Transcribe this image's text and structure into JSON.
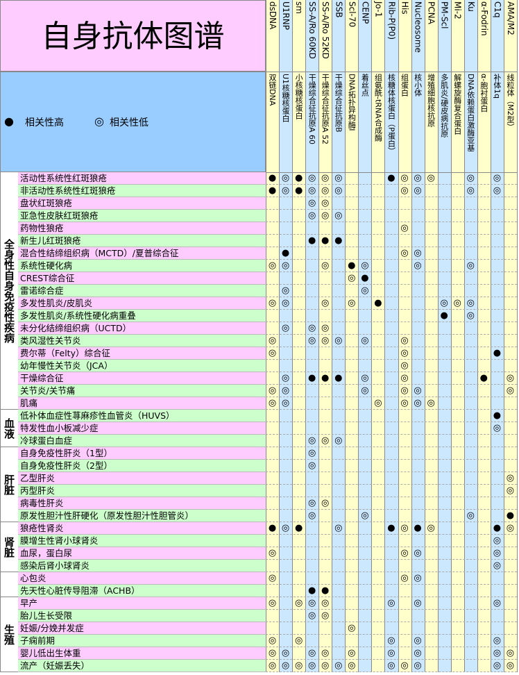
{
  "title": "自身抗体图谱",
  "legend": [
    {
      "symbol": "●",
      "label": "相关性高"
    },
    {
      "symbol": "◎",
      "label": "相关性低"
    }
  ],
  "antibodies": [
    {
      "name": "dsDNA",
      "description": "双链DNA"
    },
    {
      "name": "U1RNP",
      "description": "U1核糖核蛋白"
    },
    {
      "name": "sm",
      "description": "小核糖核蛋白"
    },
    {
      "name": "SS-A/Ro 60KD",
      "description": "干燥综合征抗原A 60"
    },
    {
      "name": "SS-A/Ro 52KD",
      "description": "干燥综合征抗原A 52"
    },
    {
      "name": "SSB",
      "description": "干燥综合征抗原B"
    },
    {
      "name": "Scl-70",
      "description": "DNA拓扑异构酶I"
    },
    {
      "name": "CENP",
      "description": "着丝点"
    },
    {
      "name": "Jo-1",
      "description": "组氨酰-tRNA合成酶"
    },
    {
      "name": "Rib-P(P0)",
      "description": "核糖体核蛋白（P蛋白）"
    },
    {
      "name": "His",
      "description": "组蛋白"
    },
    {
      "name": "Nucleosome",
      "description": "核小体"
    },
    {
      "name": "PCNA",
      "description": "增殖细胞核抗原"
    },
    {
      "name": "PM-Scl",
      "description": "多肌炎/硬皮病抗原"
    },
    {
      "name": "Mi-2",
      "description": "解螺旋酶复合蛋白"
    },
    {
      "name": "Ku",
      "description": "DNA依赖蛋白激酶亚基"
    },
    {
      "name": "α-Fodrin",
      "description": "α-胞衬蛋白"
    },
    {
      "name": "C1q",
      "description": "补体1q"
    },
    {
      "name": "AMA/M2",
      "description": "线粒体（M2型）"
    }
  ],
  "groups": [
    {
      "label": "全身性自身免疫性疾病",
      "diseases": [
        {
          "name": "活动性系统性红斑狼疮",
          "marks": [
            "●",
            "◎",
            "●",
            "◎",
            "◎",
            "◎",
            null,
            null,
            null,
            "●",
            "◎",
            "◎",
            "◎",
            null,
            null,
            "◎",
            null,
            "◎",
            null
          ]
        },
        {
          "name": "非活动性系统性红斑狼疮",
          "marks": [
            "●",
            "◎",
            "●",
            "◎",
            "◎",
            "◎",
            null,
            null,
            null,
            null,
            "◎",
            "◎",
            null,
            null,
            null,
            "◎",
            null,
            "◎",
            null
          ]
        },
        {
          "name": "盘状红斑狼疮",
          "marks": [
            null,
            null,
            null,
            "◎",
            "◎",
            null,
            null,
            null,
            null,
            null,
            null,
            null,
            null,
            null,
            null,
            null,
            null,
            null,
            null
          ]
        },
        {
          "name": "亚急性皮肤红斑狼疮",
          "marks": [
            null,
            null,
            null,
            "◎",
            "◎",
            "◎",
            null,
            null,
            null,
            null,
            null,
            null,
            null,
            null,
            null,
            null,
            null,
            null,
            null
          ]
        },
        {
          "name": "药物性狼疮",
          "marks": [
            null,
            null,
            null,
            null,
            null,
            null,
            null,
            null,
            null,
            null,
            "◎",
            null,
            null,
            null,
            null,
            null,
            null,
            null,
            null
          ]
        },
        {
          "name": "新生儿红斑狼疮",
          "marks": [
            null,
            null,
            null,
            "●",
            "●",
            "●",
            null,
            null,
            null,
            null,
            null,
            null,
            null,
            null,
            null,
            null,
            null,
            null,
            null
          ]
        },
        {
          "name": "混合性结缔组织病（MCTD）/夏普综合征",
          "marks": [
            null,
            "●",
            null,
            null,
            null,
            null,
            null,
            null,
            null,
            null,
            "◎",
            "◎",
            null,
            null,
            null,
            null,
            null,
            null,
            null
          ]
        },
        {
          "name": "系统性硬化病",
          "marks": [
            "◎",
            "◎",
            null,
            null,
            "◎",
            null,
            "●",
            "◎",
            null,
            null,
            null,
            "◎",
            null,
            null,
            null,
            "◎",
            null,
            null,
            null
          ]
        },
        {
          "name": "CREST综合征",
          "marks": [
            null,
            null,
            null,
            null,
            null,
            null,
            "◎",
            "●",
            null,
            null,
            null,
            null,
            null,
            null,
            null,
            null,
            null,
            null,
            null
          ]
        },
        {
          "name": "雷诺综合症",
          "marks": [
            null,
            "◎",
            null,
            null,
            null,
            null,
            null,
            "◎",
            null,
            null,
            null,
            null,
            null,
            null,
            null,
            null,
            null,
            null,
            null
          ]
        },
        {
          "name": "多发性肌炎/皮肌炎",
          "marks": [
            "◎",
            "◎",
            null,
            null,
            "◎",
            null,
            "◎",
            null,
            "●",
            null,
            null,
            null,
            null,
            "◎",
            "◎",
            "◎",
            null,
            null,
            null
          ]
        },
        {
          "name": "多发性肌炎/系统性硬化病重叠",
          "marks": [
            null,
            null,
            null,
            null,
            null,
            null,
            null,
            null,
            null,
            null,
            null,
            null,
            null,
            "●",
            null,
            "◎",
            null,
            null,
            null
          ]
        },
        {
          "name": "未分化结缔组织病（UCTD）",
          "marks": [
            null,
            "◎",
            null,
            "◎",
            "◎",
            null,
            null,
            null,
            null,
            null,
            null,
            null,
            null,
            null,
            null,
            null,
            null,
            null,
            null
          ]
        },
        {
          "name": "类风湿性关节炎",
          "marks": [
            "◎",
            null,
            null,
            "◎",
            "◎",
            "◎",
            null,
            "◎",
            null,
            null,
            "◎",
            null,
            null,
            null,
            null,
            null,
            null,
            null,
            null
          ]
        },
        {
          "name": "费尔蒂（Felty）综合征",
          "marks": [
            "◎",
            null,
            null,
            null,
            null,
            null,
            null,
            null,
            null,
            null,
            "◎",
            null,
            null,
            null,
            null,
            null,
            null,
            "●",
            null
          ]
        },
        {
          "name": "幼年慢性关节炎（JCA）",
          "marks": [
            null,
            null,
            null,
            null,
            null,
            null,
            null,
            null,
            null,
            null,
            "◎",
            null,
            null,
            null,
            null,
            null,
            null,
            null,
            null
          ]
        },
        {
          "name": "干燥综合征",
          "marks": [
            null,
            "◎",
            null,
            "●",
            "●",
            "●",
            null,
            "◎",
            null,
            null,
            "◎",
            null,
            null,
            null,
            null,
            null,
            "●",
            null,
            "◎"
          ]
        },
        {
          "name": "关节炎/关节痛",
          "marks": [
            "◎",
            "◎",
            null,
            null,
            null,
            null,
            null,
            "◎",
            null,
            null,
            "◎",
            "◎",
            null,
            null,
            null,
            null,
            null,
            null,
            "◎"
          ]
        },
        {
          "name": "肌痛",
          "marks": [
            "◎",
            "◎",
            null,
            null,
            null,
            null,
            null,
            null,
            "◎",
            null,
            "◎",
            "◎",
            "◎",
            null,
            null,
            null,
            null,
            null,
            null
          ]
        }
      ]
    },
    {
      "label": "血液",
      "diseases": [
        {
          "name": "低补体血症性荨麻疹性血管炎（HUVS）",
          "marks": [
            null,
            null,
            null,
            null,
            null,
            null,
            null,
            null,
            null,
            null,
            null,
            null,
            null,
            null,
            null,
            null,
            null,
            "●",
            null
          ]
        },
        {
          "name": "特发性血小板减少症",
          "marks": [
            null,
            null,
            null,
            null,
            null,
            null,
            null,
            null,
            null,
            null,
            null,
            null,
            null,
            null,
            null,
            null,
            null,
            "◎",
            null
          ]
        },
        {
          "name": "冷球蛋白血症",
          "marks": [
            null,
            null,
            null,
            "◎",
            "◎",
            "◎",
            null,
            null,
            null,
            null,
            null,
            null,
            null,
            null,
            null,
            null,
            null,
            null,
            null
          ]
        }
      ]
    },
    {
      "label": "肝脏",
      "diseases": [
        {
          "name": "自身免疫性肝炎（1型）",
          "marks": [
            null,
            null,
            null,
            "◎",
            null,
            null,
            null,
            null,
            null,
            null,
            null,
            null,
            null,
            null,
            null,
            null,
            null,
            null,
            null
          ]
        },
        {
          "name": "自身免疫性肝炎（2型）",
          "marks": [
            null,
            null,
            null,
            "◎",
            null,
            null,
            null,
            null,
            null,
            null,
            null,
            null,
            null,
            null,
            null,
            null,
            null,
            null,
            null
          ]
        },
        {
          "name": "乙型肝炎",
          "marks": [
            null,
            null,
            null,
            null,
            null,
            null,
            null,
            null,
            null,
            null,
            null,
            null,
            null,
            null,
            null,
            null,
            null,
            null,
            "◎"
          ]
        },
        {
          "name": "丙型肝炎",
          "marks": [
            null,
            null,
            null,
            null,
            null,
            null,
            null,
            null,
            null,
            null,
            null,
            null,
            null,
            null,
            null,
            null,
            null,
            null,
            "◎"
          ]
        },
        {
          "name": "病毒性肝炎",
          "marks": [
            null,
            null,
            null,
            "◎",
            "◎",
            null,
            null,
            null,
            null,
            null,
            null,
            null,
            null,
            null,
            null,
            null,
            null,
            null,
            null
          ]
        },
        {
          "name": "原发性胆汁性肝硬化（原发性胆汁性胆管炎）",
          "marks": [
            null,
            null,
            null,
            "◎",
            null,
            null,
            null,
            "◎",
            null,
            null,
            null,
            null,
            null,
            null,
            null,
            "◎",
            null,
            null,
            "●"
          ]
        }
      ]
    },
    {
      "label": "肾脏",
      "diseases": [
        {
          "name": "狼疮性肾炎",
          "marks": [
            "●",
            "◎",
            "●",
            null,
            null,
            "◎",
            null,
            null,
            null,
            "●",
            "◎",
            "●",
            "◎",
            null,
            null,
            null,
            null,
            "●",
            "◎"
          ]
        },
        {
          "name": "膜增生性肾小球肾炎",
          "marks": [
            null,
            null,
            null,
            null,
            null,
            null,
            null,
            null,
            null,
            null,
            null,
            null,
            null,
            null,
            null,
            null,
            null,
            "◎",
            null
          ]
        },
        {
          "name": "血尿，蛋白尿",
          "marks": [
            "◎",
            null,
            null,
            null,
            null,
            null,
            null,
            null,
            null,
            null,
            "◎",
            "◎",
            null,
            null,
            null,
            null,
            null,
            "◎",
            null
          ]
        },
        {
          "name": "感染后肾小球肾炎",
          "marks": [
            null,
            null,
            null,
            null,
            null,
            null,
            null,
            null,
            null,
            null,
            null,
            null,
            null,
            null,
            null,
            null,
            null,
            "◎",
            null
          ]
        }
      ]
    },
    {
      "diseases": [
        {
          "name": "心包炎",
          "marks": [
            "◎",
            null,
            null,
            null,
            null,
            null,
            null,
            null,
            null,
            null,
            "◎",
            "◎",
            null,
            null,
            null,
            null,
            null,
            null,
            null
          ]
        },
        {
          "name": "先天性心脏传导阻滞（ACHB）",
          "marks": [
            null,
            null,
            null,
            "●",
            "●",
            null,
            null,
            null,
            null,
            null,
            null,
            null,
            null,
            null,
            null,
            null,
            null,
            null,
            null
          ]
        }
      ]
    },
    {
      "label": "生殖",
      "diseases": [
        {
          "name": "早产",
          "marks": [
            "◎",
            null,
            "◎",
            "◎",
            "◎",
            null,
            null,
            null,
            null,
            "◎",
            null,
            "◎",
            null,
            null,
            null,
            null,
            null,
            "◎",
            null
          ]
        },
        {
          "name": "胎儿生长受限",
          "marks": [
            null,
            null,
            null,
            "◎",
            "◎",
            null,
            null,
            null,
            null,
            null,
            null,
            null,
            null,
            null,
            null,
            null,
            null,
            null,
            null
          ]
        },
        {
          "name": "妊娠/分娩并发症",
          "marks": [
            null,
            null,
            null,
            null,
            null,
            null,
            "◎",
            null,
            null,
            null,
            null,
            null,
            null,
            null,
            null,
            null,
            null,
            null,
            null
          ]
        },
        {
          "name": "子痫前期",
          "marks": [
            "◎",
            null,
            "◎",
            null,
            null,
            null,
            null,
            null,
            null,
            "◎",
            null,
            "◎",
            null,
            null,
            null,
            null,
            null,
            "◎",
            null
          ]
        },
        {
          "name": "婴儿低出生体重",
          "marks": [
            "◎",
            "◎",
            null,
            "◎",
            "◎",
            null,
            "◎",
            null,
            null,
            "◎",
            null,
            "◎",
            null,
            null,
            null,
            null,
            null,
            "◎",
            "◎"
          ]
        },
        {
          "name": "流产（妊娠丢失）",
          "marks": [
            "◎",
            "◎",
            "◎",
            "◎",
            "◎",
            "◎",
            "◎",
            null,
            null,
            "◎",
            "◎",
            "◎",
            null,
            null,
            null,
            null,
            null,
            "◎",
            "◎"
          ]
        }
      ]
    }
  ]
}
